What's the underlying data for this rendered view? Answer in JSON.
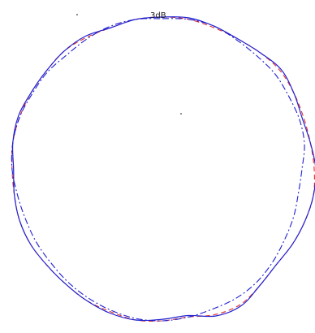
{
  "chart_data": {
    "type": "line",
    "subtype": "polar",
    "annotation": "3dB",
    "series": [
      {
        "color": "#e03030",
        "style": "dashed",
        "angle_deg": [
          0,
          10,
          20,
          30,
          40,
          50,
          60,
          70,
          80,
          90,
          100,
          110,
          120,
          130,
          140,
          150,
          160,
          170,
          180,
          190,
          200,
          210,
          220,
          230,
          240,
          250,
          260,
          270,
          280,
          290,
          300,
          310,
          320,
          330,
          340,
          350
        ],
        "r": [
          1.0,
          1.0,
          0.99,
          0.99,
          1.0,
          1.01,
          1.0,
          0.99,
          0.99,
          1.0,
          1.01,
          1.0,
          0.99,
          0.98,
          1.0,
          1.03,
          1.02,
          0.99,
          1.0,
          1.01,
          1.0,
          1.0,
          0.99,
          0.99,
          1.0,
          1.0,
          0.99,
          0.99,
          1.0,
          1.0,
          1.0,
          1.0,
          1.01,
          1.0,
          0.99,
          1.0
        ]
      },
      {
        "color": "#2020d0",
        "style": "solid",
        "angle_deg": [
          0,
          10,
          20,
          30,
          40,
          50,
          60,
          70,
          80,
          90,
          100,
          110,
          120,
          130,
          140,
          150,
          160,
          170,
          180,
          190,
          200,
          210,
          220,
          230,
          240,
          250,
          260,
          270,
          280,
          290,
          300,
          310,
          320,
          330,
          340,
          350
        ],
        "r": [
          1.0,
          1.01,
          1.0,
          0.99,
          1.0,
          1.02,
          1.0,
          0.98,
          0.99,
          1.01,
          1.01,
          1.0,
          0.99,
          0.98,
          1.0,
          1.04,
          1.03,
          0.98,
          0.99,
          1.01,
          1.01,
          1.0,
          0.99,
          0.99,
          1.0,
          1.0,
          0.99,
          0.98,
          1.0,
          1.01,
          1.0,
          1.0,
          1.01,
          1.01,
          0.99,
          1.0
        ]
      },
      {
        "color": "#2020d0",
        "style": "dash-dot",
        "angle_deg": [
          0,
          10,
          20,
          30,
          40,
          50,
          60,
          70,
          80,
          90,
          100,
          110,
          120,
          130,
          140,
          150,
          160,
          170,
          180,
          190,
          200,
          210,
          220,
          230,
          240,
          250,
          260,
          270,
          280,
          290,
          300,
          310,
          320,
          330,
          340,
          350
        ],
        "r": [
          0.99,
          1.0,
          1.0,
          0.98,
          0.97,
          0.97,
          0.96,
          0.96,
          0.95,
          0.92,
          0.91,
          0.92,
          0.93,
          0.95,
          0.97,
          0.98,
          0.98,
          0.99,
          1.0,
          1.0,
          0.99,
          0.98,
          0.97,
          0.96,
          0.96,
          0.96,
          0.97,
          0.99,
          1.0,
          1.0,
          0.99,
          0.99,
          0.98,
          0.99,
          1.0,
          1.0
        ]
      }
    ]
  }
}
